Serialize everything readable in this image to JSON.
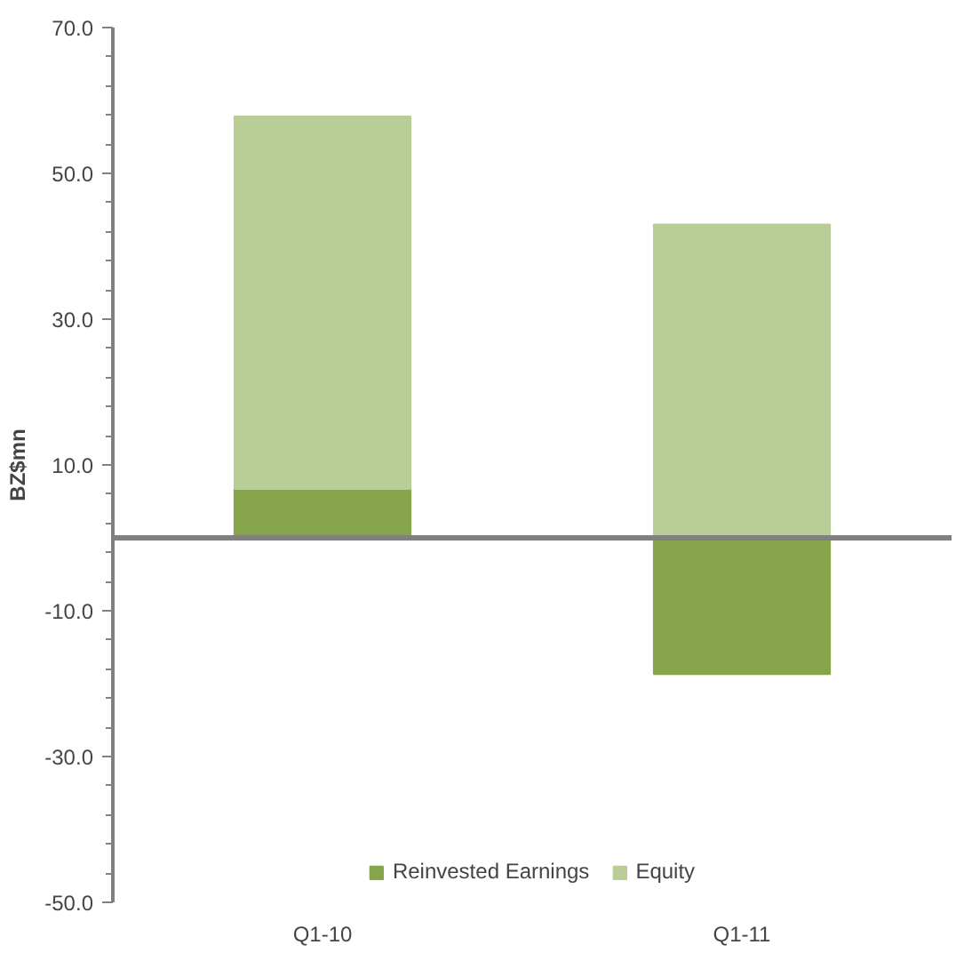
{
  "chart_data": {
    "type": "bar",
    "stacked": true,
    "ylabel": "BZ$mn",
    "categories": [
      "Q1-10",
      "Q1-11"
    ],
    "series": [
      {
        "name": "Reinvested Earnings",
        "color": "#86a44a",
        "values": [
          6.7,
          -18.7
        ]
      },
      {
        "name": "Equity",
        "color": "#b9cd96",
        "values": [
          51.1,
          43.0
        ]
      }
    ],
    "ylim": [
      -50,
      70
    ],
    "yticks": [
      {
        "value": -50,
        "label": "-50.0"
      },
      {
        "value": -30,
        "label": "-30.0"
      },
      {
        "value": -10,
        "label": "-10.0"
      },
      {
        "value": 10,
        "label": "10.0"
      },
      {
        "value": 30,
        "label": "30.0"
      },
      {
        "value": 50,
        "label": "50.0"
      },
      {
        "value": 70,
        "label": "70.0"
      }
    ],
    "grid": false,
    "legend": "bottom"
  }
}
